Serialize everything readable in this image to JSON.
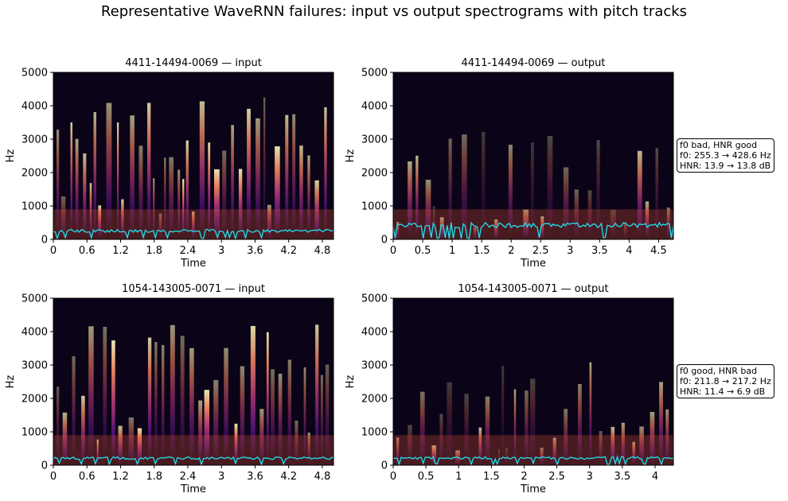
{
  "figure": {
    "suptitle": "Representative WaveRNN failures: input vs output spectrograms with pitch tracks"
  },
  "colors": {
    "pitch_track": "#22e0ee",
    "colormap": "magma"
  },
  "chart_data": [
    {
      "type": "heatmap",
      "title": "4411-14494-0069 — input",
      "xlabel": "Time",
      "ylabel": "Hz",
      "xlim": [
        0,
        5.0
      ],
      "ylim": [
        0,
        5000
      ],
      "xticks": [
        "0",
        "0.6",
        "1.2",
        "1.8",
        "2.4",
        "3",
        "3.6",
        "4.2",
        "4.8"
      ],
      "xtick_values": [
        0,
        0.6,
        1.2,
        1.8,
        2.4,
        3.0,
        3.6,
        4.2,
        4.8
      ],
      "yticks": [
        "0",
        "1000",
        "2000",
        "3000",
        "4000",
        "5000"
      ],
      "ytick_values": [
        0,
        1000,
        2000,
        3000,
        4000,
        5000
      ],
      "pitch_track_median_hz": 255.3
    },
    {
      "type": "heatmap",
      "title": "4411-14494-0069 — output",
      "xlabel": "Time",
      "ylabel": "Hz",
      "xlim": [
        0,
        4.75
      ],
      "ylim": [
        0,
        5000
      ],
      "xticks": [
        "0",
        "0.5",
        "1",
        "1.5",
        "2",
        "2.5",
        "3",
        "3.5",
        "4",
        "4.5"
      ],
      "xtick_values": [
        0,
        0.5,
        1,
        1.5,
        2,
        2.5,
        3,
        3.5,
        4,
        4.5
      ],
      "yticks": [
        "0",
        "1000",
        "2000",
        "3000",
        "4000",
        "5000"
      ],
      "ytick_values": [
        0,
        1000,
        2000,
        3000,
        4000,
        5000
      ],
      "pitch_track_median_hz": 428.6,
      "annotation": [
        "f0 bad, HNR good",
        "f0: 255.3 → 428.6 Hz",
        "HNR: 13.9 → 13.8 dB"
      ]
    },
    {
      "type": "heatmap",
      "title": "1054-143005-0071 — input",
      "xlabel": "Time",
      "ylabel": "Hz",
      "xlim": [
        0,
        5.0
      ],
      "ylim": [
        0,
        5000
      ],
      "xticks": [
        "0",
        "0.6",
        "1.2",
        "1.8",
        "2.4",
        "3",
        "3.6",
        "4.2",
        "4.8"
      ],
      "xtick_values": [
        0,
        0.6,
        1.2,
        1.8,
        2.4,
        3.0,
        3.6,
        4.2,
        4.8
      ],
      "yticks": [
        "0",
        "1000",
        "2000",
        "3000",
        "4000",
        "5000"
      ],
      "ytick_values": [
        0,
        1000,
        2000,
        3000,
        4000,
        5000
      ],
      "pitch_track_median_hz": 211.8
    },
    {
      "type": "heatmap",
      "title": "1054-143005-0071 — output",
      "xlabel": "Time",
      "ylabel": "Hz",
      "xlim": [
        0,
        4.28
      ],
      "ylim": [
        0,
        5000
      ],
      "xticks": [
        "0",
        "0.5",
        "1",
        "1.5",
        "2",
        "2.5",
        "3",
        "3.5",
        "4"
      ],
      "xtick_values": [
        0,
        0.5,
        1,
        1.5,
        2,
        2.5,
        3,
        3.5,
        4
      ],
      "yticks": [
        "0",
        "1000",
        "2000",
        "3000",
        "4000",
        "5000"
      ],
      "ytick_values": [
        0,
        1000,
        2000,
        3000,
        4000,
        5000
      ],
      "pitch_track_median_hz": 217.2,
      "annotation": [
        "f0 good, HNR bad",
        "f0: 211.8 → 217.2 Hz",
        "HNR: 11.4 → 6.9 dB"
      ]
    }
  ]
}
